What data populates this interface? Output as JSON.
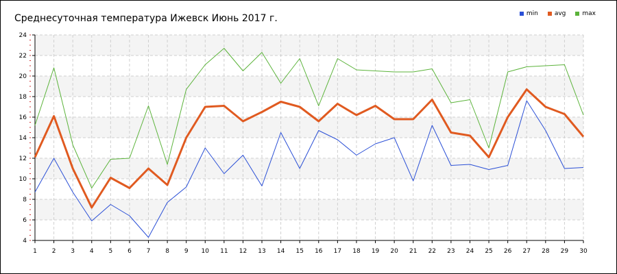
{
  "chart_data": {
    "type": "line",
    "title": "Среднесуточная температура Ижевск  Июнь 2017 г.",
    "xlabel": "",
    "ylabel": "",
    "x": [
      1,
      2,
      3,
      4,
      5,
      6,
      7,
      8,
      9,
      10,
      11,
      12,
      13,
      14,
      15,
      16,
      17,
      18,
      19,
      20,
      21,
      22,
      23,
      24,
      25,
      26,
      27,
      28,
      29,
      30
    ],
    "xlim": [
      1,
      30
    ],
    "ylim": [
      4,
      24
    ],
    "yticks": [
      4,
      6,
      8,
      10,
      12,
      14,
      16,
      18,
      20,
      22,
      24
    ],
    "grid": true,
    "legend_position": "top-right",
    "series": [
      {
        "name": "min",
        "color": "#2a4fd6",
        "values": [
          8.7,
          12.0,
          8.7,
          5.9,
          7.5,
          6.4,
          4.3,
          7.7,
          9.2,
          13.0,
          10.5,
          12.3,
          9.3,
          14.5,
          11.0,
          14.7,
          13.8,
          12.3,
          13.4,
          14.0,
          9.8,
          15.2,
          11.3,
          11.4,
          10.9,
          11.3,
          17.6,
          14.7,
          11.0,
          11.1
        ]
      },
      {
        "name": "avg",
        "color": "#e05a20",
        "values": [
          12.1,
          16.1,
          11.0,
          7.2,
          10.1,
          9.1,
          11.0,
          9.4,
          14.0,
          17.0,
          17.1,
          15.6,
          16.5,
          17.5,
          17.0,
          15.6,
          17.3,
          16.2,
          17.1,
          15.8,
          15.8,
          17.7,
          14.5,
          14.2,
          12.1,
          16.0,
          18.7,
          17.0,
          16.3,
          14.1
        ]
      },
      {
        "name": "max",
        "color": "#5bb33a",
        "values": [
          15.2,
          20.8,
          13.3,
          9.1,
          11.9,
          12.0,
          17.1,
          11.4,
          18.7,
          21.1,
          22.7,
          20.5,
          22.3,
          19.3,
          21.7,
          17.1,
          21.7,
          20.6,
          20.5,
          20.4,
          20.4,
          20.7,
          17.4,
          17.7,
          13.0,
          20.4,
          20.9,
          21.0,
          21.1,
          16.2
        ]
      }
    ]
  }
}
